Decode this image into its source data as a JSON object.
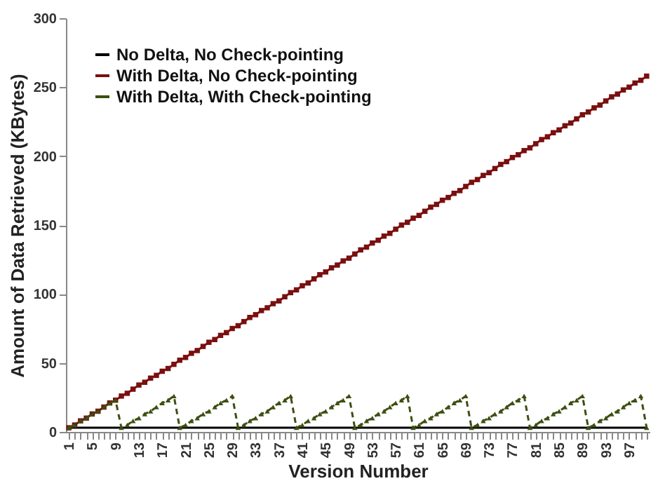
{
  "chart_data": {
    "type": "line",
    "xlabel": "Version Number",
    "ylabel": "Amount of Data Retrieved (KBytes)",
    "categories": [
      "1",
      null,
      null,
      null,
      "5",
      null,
      null,
      null,
      "9",
      null,
      null,
      null,
      "13",
      null,
      null,
      null,
      "17",
      null,
      null,
      null,
      "21",
      null,
      null,
      null,
      "25",
      null,
      null,
      null,
      "29",
      null,
      null,
      null,
      "33",
      null,
      null,
      null,
      "37",
      null,
      null,
      null,
      "41",
      null,
      null,
      null,
      "45",
      null,
      null,
      null,
      "49",
      null,
      null,
      null,
      "53",
      null,
      null,
      null,
      "57",
      null,
      null,
      null,
      "61",
      null,
      null,
      null,
      "65",
      null,
      null,
      null,
      "69",
      null,
      null,
      null,
      "73",
      null,
      null,
      null,
      "77",
      null,
      null,
      null,
      "81",
      null,
      null,
      null,
      "85",
      null,
      null,
      null,
      "89",
      null,
      null,
      null,
      "93",
      null,
      null,
      null,
      "97",
      null,
      null,
      null
    ],
    "series": [
      {
        "name": "No Delta, No Check-pointing",
        "color": "#000000",
        "marker": "none",
        "line_style": "solid",
        "values": [
          3,
          3,
          3,
          3,
          3,
          3,
          3,
          3,
          3,
          3,
          3,
          3,
          3,
          3,
          3,
          3,
          3,
          3,
          3,
          3,
          3,
          3,
          3,
          3,
          3,
          3,
          3,
          3,
          3,
          3,
          3,
          3,
          3,
          3,
          3,
          3,
          3,
          3,
          3,
          3,
          3,
          3,
          3,
          3,
          3,
          3,
          3,
          3,
          3,
          3,
          3,
          3,
          3,
          3,
          3,
          3,
          3,
          3,
          3,
          3,
          3,
          3,
          3,
          3,
          3,
          3,
          3,
          3,
          3,
          3,
          3,
          3,
          3,
          3,
          3,
          3,
          3,
          3,
          3,
          3,
          3,
          3,
          3,
          3,
          3,
          3,
          3,
          3,
          3,
          3,
          3,
          3,
          3,
          3,
          3,
          3,
          3,
          3,
          3,
          3
        ]
      },
      {
        "name": "With Delta, No Check-pointing",
        "color": "#7a0f0f",
        "marker": "square",
        "line_style": "solid",
        "values": [
          3,
          5,
          8,
          10,
          13,
          15,
          18,
          21,
          23,
          26,
          28,
          31,
          34,
          36,
          39,
          41,
          44,
          46,
          49,
          52,
          54,
          57,
          59,
          62,
          65,
          67,
          70,
          72,
          75,
          77,
          80,
          83,
          85,
          88,
          90,
          93,
          95,
          98,
          101,
          103,
          106,
          108,
          111,
          114,
          116,
          119,
          121,
          124,
          126,
          129,
          132,
          134,
          137,
          139,
          142,
          144,
          147,
          150,
          152,
          155,
          157,
          160,
          163,
          165,
          168,
          170,
          173,
          175,
          178,
          181,
          183,
          186,
          188,
          191,
          194,
          196,
          199,
          201,
          204,
          206,
          209,
          212,
          214,
          217,
          219,
          222,
          224,
          227,
          230,
          232,
          235,
          237,
          240,
          243,
          245,
          248,
          250,
          253,
          255,
          258
        ]
      },
      {
        "name": "With Delta, With Check-pointing",
        "color": "#3d4f12",
        "marker": "triangle",
        "line_style": "dashed",
        "values": [
          3,
          5,
          8,
          10,
          13,
          15,
          18,
          21,
          23,
          3,
          5,
          8,
          10,
          13,
          15,
          18,
          21,
          23,
          26,
          3,
          5,
          8,
          10,
          13,
          15,
          18,
          21,
          23,
          26,
          3,
          5,
          8,
          10,
          13,
          15,
          18,
          21,
          23,
          26,
          3,
          5,
          8,
          10,
          13,
          15,
          18,
          21,
          23,
          26,
          3,
          5,
          8,
          10,
          13,
          15,
          18,
          21,
          23,
          26,
          3,
          5,
          8,
          10,
          13,
          15,
          18,
          21,
          23,
          26,
          3,
          5,
          8,
          10,
          13,
          15,
          18,
          21,
          23,
          26,
          3,
          5,
          8,
          10,
          13,
          15,
          18,
          21,
          23,
          26,
          3,
          5,
          8,
          10,
          13,
          15,
          18,
          21,
          23,
          26,
          3
        ]
      }
    ],
    "ylim": [
      0,
      300
    ],
    "yticks": [
      0,
      50,
      100,
      150,
      200,
      250,
      300
    ],
    "grid": false,
    "legend": "top left"
  }
}
